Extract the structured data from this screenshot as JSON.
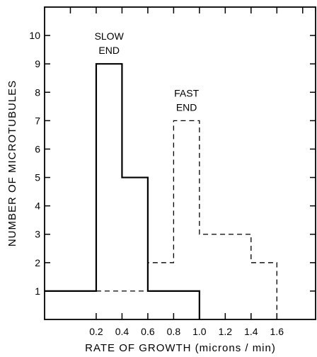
{
  "chart_data": {
    "type": "bar",
    "title": "",
    "xlabel": "RATE OF GROWTH (microns / min)",
    "ylabel": "NUMBER OF MICROTUBULES",
    "xlim": [
      -0.2,
      1.9
    ],
    "ylim": [
      0,
      11
    ],
    "x_ticks": [
      0.2,
      0.4,
      0.6,
      0.8,
      1.0,
      1.2,
      1.4,
      1.6
    ],
    "x_tick_labels": [
      "0.2",
      "0.4",
      "0.6",
      "0.8",
      "1.0",
      "1.2",
      "1.4",
      "1.6"
    ],
    "y_ticks": [
      1,
      2,
      3,
      4,
      5,
      6,
      7,
      8,
      9,
      10
    ],
    "y_tick_labels": [
      "1",
      "2",
      "3",
      "4",
      "5",
      "6",
      "7",
      "8",
      "9",
      "10"
    ],
    "bin_edges": [
      0.0,
      0.2,
      0.4,
      0.6,
      0.8,
      1.0,
      1.2,
      1.4,
      1.6
    ],
    "series": [
      {
        "name": "SLOW END",
        "label_lines": [
          "SLOW",
          "END"
        ],
        "style": "solid",
        "values": [
          1,
          9,
          5,
          1,
          1,
          0,
          0,
          0
        ]
      },
      {
        "name": "FAST END",
        "label_lines": [
          "FAST",
          "END"
        ],
        "style": "dashed",
        "values": [
          1,
          1,
          1,
          2,
          7,
          3,
          3,
          2
        ]
      }
    ],
    "grid": false,
    "legend": "inline labels above peaks"
  }
}
